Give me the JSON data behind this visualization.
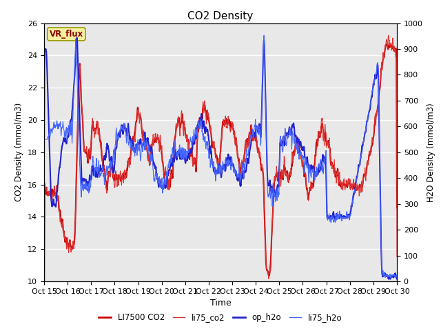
{
  "title": "CO2 Density",
  "xlabel": "Time",
  "ylabel_left": "CO2 Density (mmol/m3)",
  "ylabel_right": "H2O Density (mmol/m3)",
  "ylim_left": [
    10,
    26
  ],
  "ylim_right": [
    0,
    1000
  ],
  "yticks_left": [
    10,
    12,
    14,
    16,
    18,
    20,
    22,
    24,
    26
  ],
  "yticks_right": [
    0,
    100,
    200,
    300,
    400,
    500,
    600,
    700,
    800,
    900,
    1000
  ],
  "xtick_labels": [
    "Oct 15",
    "Oct 16",
    "Oct 17",
    "Oct 18",
    "Oct 19",
    "Oct 20",
    "Oct 21",
    "Oct 22",
    "Oct 23",
    "Oct 24",
    "Oct 25",
    "Oct 26",
    "Oct 27",
    "Oct 28",
    "Oct 29",
    "Oct 30"
  ],
  "legend_entries": [
    "LI7500 CO2",
    "li75_co2",
    "op_h2o",
    "li75_h2o"
  ],
  "color_li7500": "#cc0000",
  "color_li75co2": "#dd3333",
  "color_opH2o": "#2222cc",
  "color_li75h2o": "#4466ff",
  "vr_flux_label": "VR_flux",
  "bg_color": "#e8e8e8",
  "fig_bg_color": "#ffffff",
  "grid_color": "#ffffff",
  "lw_thick": 1.5,
  "lw_thin": 0.8
}
